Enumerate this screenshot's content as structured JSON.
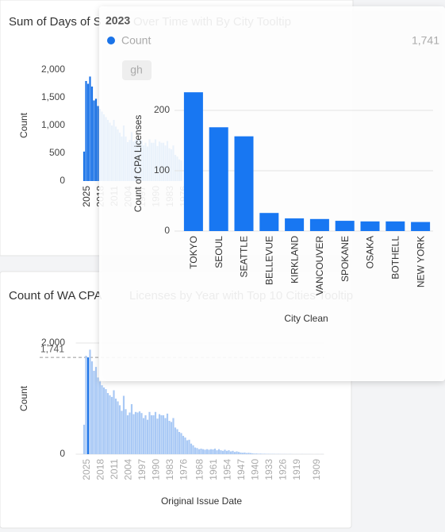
{
  "chart_data": [
    {
      "type": "bar",
      "title": "Sum of Days of S",
      "title_faded": "Over Time with By City Tooltip",
      "y_label": "Count",
      "x": [
        2025,
        2024,
        2023,
        2022,
        2021,
        2020,
        2019,
        2018,
        2017,
        2016,
        2015,
        2014,
        2013,
        2012,
        2011,
        2010,
        2009,
        2008,
        2007,
        2006,
        2005,
        2004,
        2003,
        2002,
        2001,
        2000,
        1999,
        1998,
        1997,
        1996,
        1995,
        1994,
        1993,
        1992,
        1991,
        1990,
        1989,
        1988,
        1987,
        1986,
        1985,
        1984,
        1983,
        1982,
        1981,
        1980,
        1979,
        1978,
        1977,
        1976
      ],
      "values": [
        530,
        1800,
        1750,
        1880,
        1700,
        1450,
        1480,
        1350,
        1300,
        1250,
        1200,
        1150,
        1100,
        1050,
        1000,
        1100,
        980,
        930,
        870,
        800,
        1000,
        800,
        700,
        740,
        880,
        710,
        750,
        740,
        760,
        730,
        640,
        690,
        620,
        750,
        690,
        690,
        750,
        630,
        710,
        690,
        690,
        640,
        720,
        590,
        570,
        640,
        470,
        440,
        390,
        370
      ],
      "color": "#1a73e8",
      "xlim": [
        2026,
        1904
      ],
      "xticks": [
        2025,
        2018,
        2011,
        2004,
        1997,
        1990,
        1983,
        1976
      ],
      "ylim": [
        0,
        2000
      ],
      "yticks": [
        0,
        500,
        {
          "value": 1000,
          "label": "1,000"
        },
        {
          "value": 1500,
          "label": "1,500"
        },
        {
          "value": 2000,
          "label": "2,000"
        }
      ],
      "grid": false
    },
    {
      "type": "bar",
      "title": "Count of WA CPA",
      "title_faded": "Licenses by Year with Top 10 Cities Tooltip",
      "y_label": "Count",
      "x_label": "Original Issue Date",
      "x": [
        2025,
        2024,
        2023,
        2022,
        2021,
        2020,
        2019,
        2018,
        2017,
        2016,
        2015,
        2014,
        2013,
        2012,
        2011,
        2010,
        2009,
        2008,
        2007,
        2006,
        2005,
        2004,
        2003,
        2002,
        2001,
        2000,
        1999,
        1998,
        1997,
        1996,
        1995,
        1994,
        1993,
        1992,
        1991,
        1990,
        1989,
        1988,
        1987,
        1986,
        1985,
        1984,
        1983,
        1982,
        1981,
        1980,
        1979,
        1978,
        1977,
        1976,
        1975,
        1974,
        1973,
        1972,
        1971,
        1970,
        1969,
        1968,
        1967,
        1966,
        1965,
        1964,
        1963,
        1962,
        1961,
        1960,
        1959,
        1958,
        1957,
        1956,
        1955,
        1954,
        1953,
        1952,
        1951,
        1950,
        1949,
        1948,
        1947,
        1946,
        1945,
        1944,
        1943,
        1942,
        1941,
        1940,
        1939,
        1938,
        1937,
        1936,
        1935,
        1934,
        1933,
        1932,
        1931,
        1930,
        1929,
        1928,
        1927,
        1926,
        1925,
        1924,
        1923,
        1922,
        1921,
        1920,
        1919,
        1918,
        1917,
        1916,
        1915,
        1914,
        1913,
        1912,
        1911,
        1910,
        1909,
        1908,
        1907,
        1906,
        1905
      ],
      "values": [
        530,
        1770,
        1741,
        1880,
        1670,
        1500,
        1570,
        1380,
        1310,
        1240,
        1200,
        1170,
        1100,
        1060,
        1030,
        1150,
        1000,
        950,
        880,
        780,
        1050,
        810,
        700,
        750,
        900,
        720,
        760,
        750,
        770,
        740,
        650,
        700,
        620,
        760,
        700,
        700,
        760,
        640,
        720,
        700,
        700,
        650,
        730,
        600,
        580,
        650,
        480,
        450,
        400,
        380,
        330,
        300,
        250,
        260,
        190,
        160,
        120,
        110,
        90,
        100,
        90,
        80,
        90,
        80,
        90,
        85,
        100,
        70,
        90,
        70,
        60,
        80,
        60,
        70,
        50,
        60,
        40,
        50,
        40,
        30,
        25,
        30,
        20,
        25,
        20,
        15,
        10,
        12,
        8,
        10,
        6,
        8,
        5,
        6,
        4,
        5,
        4,
        3,
        4,
        3,
        2,
        3,
        2,
        2,
        3,
        2,
        1,
        2,
        1,
        1,
        2,
        1,
        1,
        1,
        1,
        1,
        0,
        1,
        1,
        0,
        1
      ],
      "color": "#a9c9f5",
      "highlight_color": "#1a73e8",
      "highlight_x": 2023,
      "xlim": [
        2026,
        1904
      ],
      "xticks": [
        2025,
        2018,
        2011,
        2004,
        1997,
        1990,
        1983,
        1976,
        1968,
        1961,
        1954,
        1947,
        1940,
        1933,
        1926,
        1919,
        1909
      ],
      "ylim": [
        0,
        2000
      ],
      "yticks": [
        0,
        {
          "value": 2000,
          "label": "2,000"
        }
      ],
      "grid": true,
      "reference": {
        "value": 1741,
        "label": "1,741"
      }
    },
    {
      "type": "bar",
      "y_label": "Count of CPA Licenses",
      "x_label": "City Clean",
      "categories": [
        "TOKYO",
        "SEOUL",
        "SEATTLE",
        "BELLEVUE",
        "KIRKLAND",
        "VANCOUVER",
        "SPOKANE",
        "OSAKA",
        "BOTHELL",
        "NEW YORK"
      ],
      "values": [
        230,
        172,
        157,
        30,
        21,
        20,
        17,
        16,
        16,
        15
      ],
      "color": "#1877f2",
      "ylim": [
        0,
        250
      ],
      "yticks": [
        0,
        100,
        200
      ],
      "grid": true
    }
  ],
  "tooltip": {
    "header": "2023",
    "legend_name": "Count",
    "legend_value": "1,741",
    "chip": "gh"
  }
}
